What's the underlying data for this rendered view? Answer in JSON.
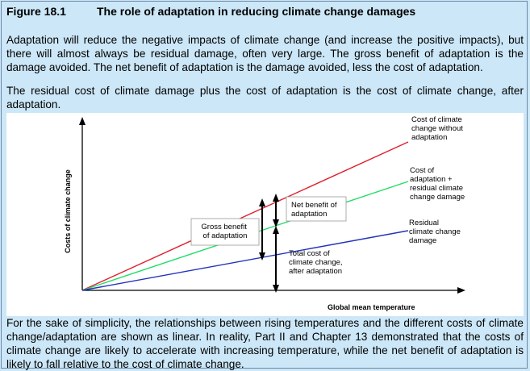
{
  "figure": {
    "number": "Figure 18.1",
    "title": "The role of adaptation in reducing climate change damages"
  },
  "paragraphs": {
    "intro": "Adaptation will reduce the negative impacts of climate change (and increase the positive impacts), but there will almost always be residual damage, often very large. The gross benefit of adaptation is the damage avoided. The net benefit of adaptation is the damage avoided, less the cost of adaptation.",
    "residual": "The residual cost of climate damage plus the cost of adaptation is the cost of climate change, after adaptation.",
    "note": "For the sake of simplicity, the relationships between rising temperatures and the different costs of climate change/adaptation are shown as linear. In reality, Part II and Chapter 13 demonstrated that the costs of climate change are likely to accelerate with increasing temperature, while the net benefit of adaptation is likely to fall relative to the cost of climate change."
  },
  "diagram": {
    "x_axis_label": "Global mean temperature",
    "y_axis_label": "Costs of climate change",
    "lines": [
      {
        "id": "no-adaptation",
        "label": [
          "Cost of climate",
          "change without",
          "adaptation"
        ],
        "color": "#e0202e"
      },
      {
        "id": "adaptation-plus-residual",
        "label": [
          "Cost of",
          "adaptation +",
          "residual climate",
          "change damage"
        ],
        "color": "#22dd66"
      },
      {
        "id": "residual",
        "label": [
          "Residual",
          "climate change",
          "damage"
        ],
        "color": "#2233bb"
      }
    ],
    "annotations": {
      "gross_benefit": [
        "Gross benefit",
        "of adaptation"
      ],
      "net_benefit": [
        "Net benefit of",
        "adaptation"
      ],
      "total_cost": [
        "Total cost of",
        "climate change,",
        "after adaptation"
      ]
    }
  }
}
